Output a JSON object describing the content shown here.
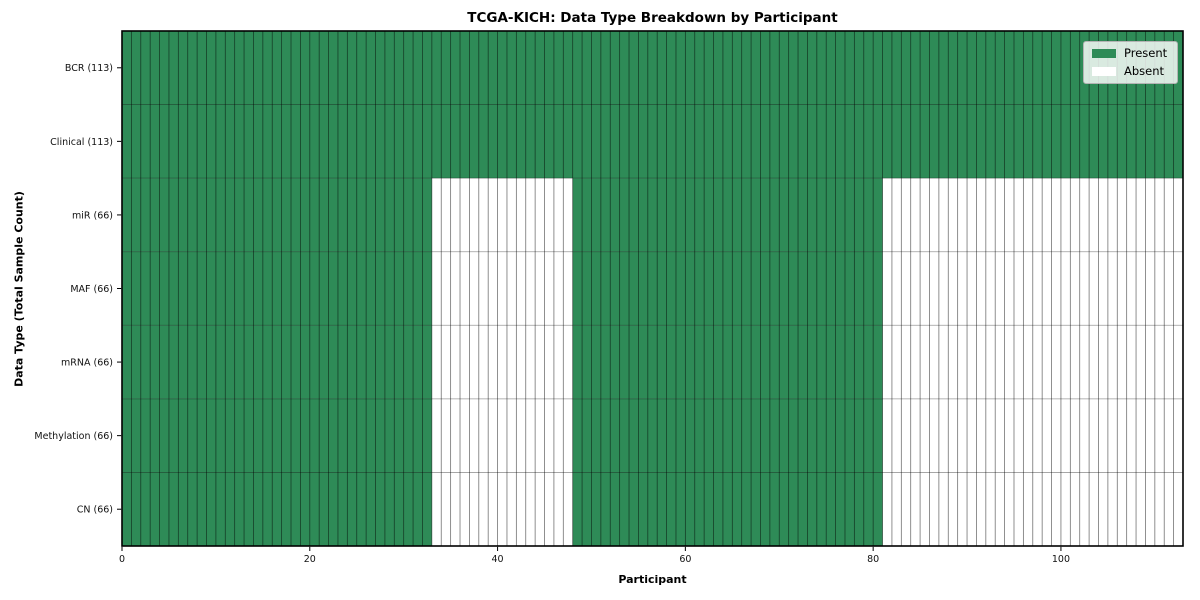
{
  "chart_data": {
    "type": "heatmap",
    "title": "TCGA-KICH: Data Type Breakdown by Participant",
    "xlabel": "Participant",
    "ylabel": "Data Type (Total Sample Count)",
    "x_ticks": [
      0,
      20,
      40,
      60,
      80,
      100
    ],
    "x_range": [
      0,
      113
    ],
    "n_participants": 113,
    "categories": [
      "BCR (113)",
      "Clinical (113)",
      "miR (66)",
      "MAF (66)",
      "mRNA (66)",
      "Methylation (66)",
      "CN (66)"
    ],
    "rows": [
      {
        "label": "BCR (113)",
        "data_type": "BCR",
        "sample_count": 113,
        "present_ranges": [
          [
            0,
            113
          ]
        ]
      },
      {
        "label": "Clinical (113)",
        "data_type": "Clinical",
        "sample_count": 113,
        "present_ranges": [
          [
            0,
            113
          ]
        ]
      },
      {
        "label": "miR (66)",
        "data_type": "miR",
        "sample_count": 66,
        "present_ranges": [
          [
            0,
            33
          ],
          [
            48,
            81
          ]
        ]
      },
      {
        "label": "MAF (66)",
        "data_type": "MAF",
        "sample_count": 66,
        "present_ranges": [
          [
            0,
            33
          ],
          [
            48,
            81
          ]
        ]
      },
      {
        "label": "mRNA (66)",
        "data_type": "mRNA",
        "sample_count": 66,
        "present_ranges": [
          [
            0,
            33
          ],
          [
            48,
            81
          ]
        ]
      },
      {
        "label": "Methylation (66)",
        "data_type": "Methylation",
        "sample_count": 66,
        "present_ranges": [
          [
            0,
            33
          ],
          [
            48,
            81
          ]
        ]
      },
      {
        "label": "CN (66)",
        "data_type": "CN",
        "sample_count": 66,
        "present_ranges": [
          [
            0,
            33
          ],
          [
            48,
            81
          ]
        ]
      }
    ],
    "legend": [
      {
        "label": "Present",
        "color": "#2e8b57"
      },
      {
        "label": "Absent",
        "color": "#ffffff"
      }
    ],
    "legend_position": "upper-right",
    "grid": "cell-borders",
    "colors": {
      "present": "#2e8b57",
      "absent": "#ffffff",
      "cell_edge": "#000000",
      "spine": "#000000",
      "background": "#ffffff"
    }
  }
}
